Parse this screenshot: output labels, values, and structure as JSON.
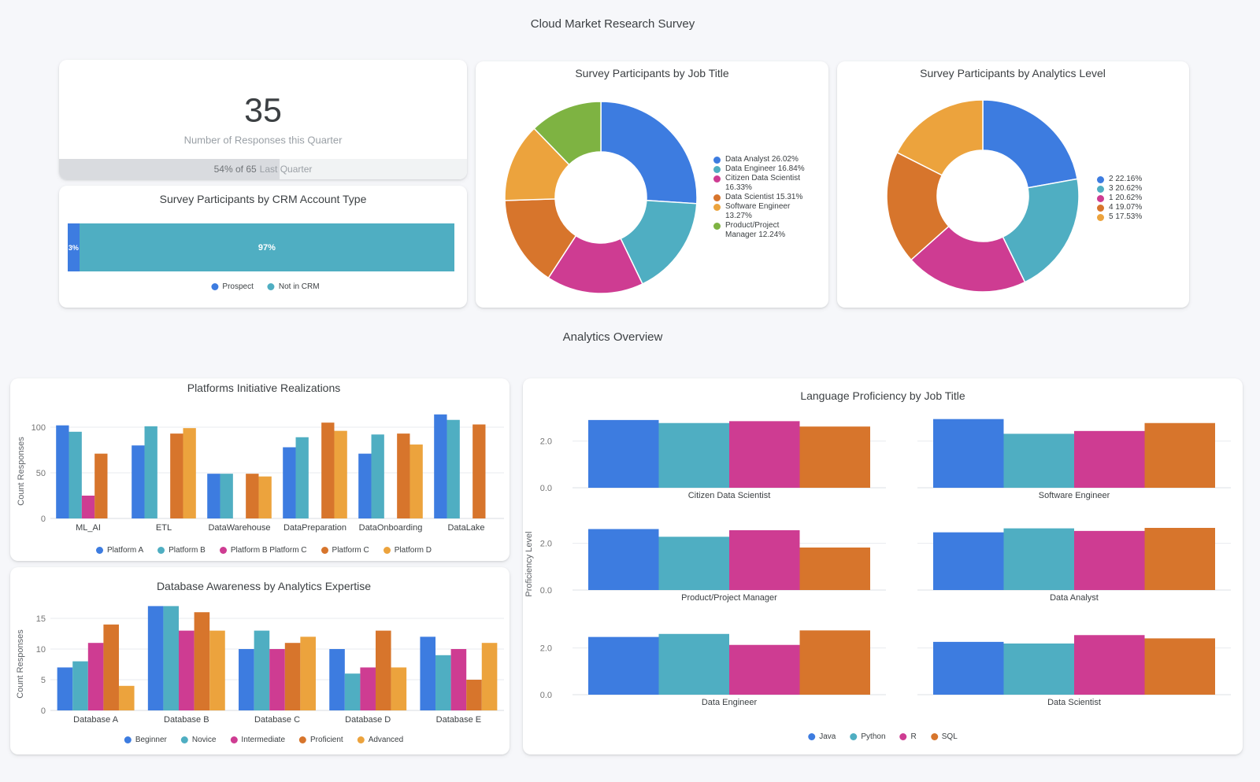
{
  "header": {
    "title": "Cloud Market Research Survey"
  },
  "sections": {
    "analytics": "Analytics Overview"
  },
  "palette": {
    "blue": "#3D7CE0",
    "teal": "#4FAEC2",
    "pink": "#CE3C92",
    "orange": "#D7752C",
    "yellow": "#ECA33D",
    "green": "#7EB342"
  },
  "chart_data": [
    {
      "id": "responses_scorecard",
      "type": "scorecard",
      "value": "35",
      "label": "Number of Responses this Quarter",
      "progress_pct": 54,
      "progress_text": "54% of 65",
      "progress_suffix": "Last Quarter"
    },
    {
      "id": "crm_account_type",
      "type": "stacked_hbar",
      "title": "Survey Participants by CRM Account Type",
      "segments": [
        {
          "label": "Prospect",
          "pct": 3,
          "display": "3%",
          "color": "blue"
        },
        {
          "label": "Not in CRM",
          "pct": 97,
          "display": "97%",
          "color": "teal"
        }
      ]
    },
    {
      "id": "job_title_donut",
      "type": "donut",
      "title": "Survey Participants by Job Title",
      "slices": [
        {
          "label": "Data Analyst",
          "pct": 26.02,
          "color": "blue"
        },
        {
          "label": "Data Engineer",
          "pct": 16.84,
          "color": "teal"
        },
        {
          "label": "Citizen Data Scientist",
          "pct": 16.33,
          "color": "pink"
        },
        {
          "label": "Data Scientist",
          "pct": 15.31,
          "color": "orange"
        },
        {
          "label": "Software Engineer",
          "pct": 13.27,
          "color": "yellow"
        },
        {
          "label": "Product/Project Manager",
          "pct": 12.24,
          "color": "green"
        }
      ]
    },
    {
      "id": "analytics_level_donut",
      "type": "donut",
      "title": "Survey Participants by Analytics Level",
      "slices": [
        {
          "label": "2",
          "pct": 22.16,
          "color": "blue"
        },
        {
          "label": "3",
          "pct": 20.62,
          "color": "teal"
        },
        {
          "label": "1",
          "pct": 20.62,
          "color": "pink"
        },
        {
          "label": "4",
          "pct": 19.07,
          "color": "orange"
        },
        {
          "label": "5",
          "pct": 17.53,
          "color": "yellow"
        }
      ]
    },
    {
      "id": "platforms_initiative",
      "type": "bar",
      "title": "Platforms Initiative Realizations",
      "ylabel": "Count Responses",
      "yticks": [
        0,
        50,
        100
      ],
      "ymax": 120,
      "categories": [
        "ML_AI",
        "ETL",
        "DataWarehouse",
        "DataPreparation",
        "DataOnboarding",
        "DataLake"
      ],
      "series": [
        {
          "name": "Platform A",
          "color": "blue",
          "values": [
            102,
            80,
            49,
            78,
            71,
            114
          ]
        },
        {
          "name": "Platform B",
          "color": "teal",
          "values": [
            95,
            101,
            49,
            89,
            92,
            108
          ]
        },
        {
          "name": "Platform B Platform C",
          "color": "pink",
          "values": [
            25,
            null,
            null,
            null,
            null,
            null
          ]
        },
        {
          "name": "Platform C",
          "color": "orange",
          "values": [
            71,
            93,
            49,
            105,
            93,
            103
          ]
        },
        {
          "name": "Platform D",
          "color": "yellow",
          "values": [
            null,
            99,
            46,
            96,
            81,
            null
          ]
        }
      ]
    },
    {
      "id": "database_awareness",
      "type": "bar",
      "title": "Database Awareness by Analytics Expertise",
      "ylabel": "Count Responses",
      "yticks": [
        0,
        5,
        10,
        15
      ],
      "ymax": 17.5,
      "categories": [
        "Database A",
        "Database B",
        "Database C",
        "Database D",
        "Database E"
      ],
      "series": [
        {
          "name": "Beginner",
          "color": "blue",
          "values": [
            7,
            17,
            10,
            10,
            12
          ]
        },
        {
          "name": "Novice",
          "color": "teal",
          "values": [
            8,
            17,
            13,
            6,
            9
          ]
        },
        {
          "name": "Intermediate",
          "color": "pink",
          "values": [
            11,
            13,
            10,
            7,
            10
          ]
        },
        {
          "name": "Proficient",
          "color": "orange",
          "values": [
            14,
            16,
            11,
            13,
            5
          ]
        },
        {
          "name": "Advanced",
          "color": "yellow",
          "values": [
            4,
            13,
            12,
            7,
            11
          ]
        }
      ]
    },
    {
      "id": "language_proficiency",
      "type": "small_multiples_bar",
      "title": "Language Proficiency by Job Title",
      "ylabel": "Proficiency Level",
      "yticks": [
        0,
        2
      ],
      "ymax": 3,
      "series_labels": [
        "Java",
        "Python",
        "R",
        "SQL"
      ],
      "series_colors": [
        "blue",
        "teal",
        "pink",
        "orange"
      ],
      "charts": [
        {
          "label": "Citizen Data Scientist",
          "values": [
            2.9,
            2.77,
            2.85,
            2.62
          ]
        },
        {
          "label": "Software Engineer",
          "values": [
            2.94,
            2.31,
            2.43,
            2.77
          ]
        },
        {
          "label": "Product/Project Manager",
          "values": [
            2.61,
            2.28,
            2.56,
            1.82
          ]
        },
        {
          "label": "Data Analyst",
          "values": [
            2.47,
            2.64,
            2.53,
            2.66
          ]
        },
        {
          "label": "Data Engineer",
          "values": [
            2.47,
            2.6,
            2.13,
            2.75
          ]
        },
        {
          "label": "Data Scientist",
          "values": [
            2.26,
            2.19,
            2.55,
            2.41
          ]
        }
      ]
    }
  ]
}
